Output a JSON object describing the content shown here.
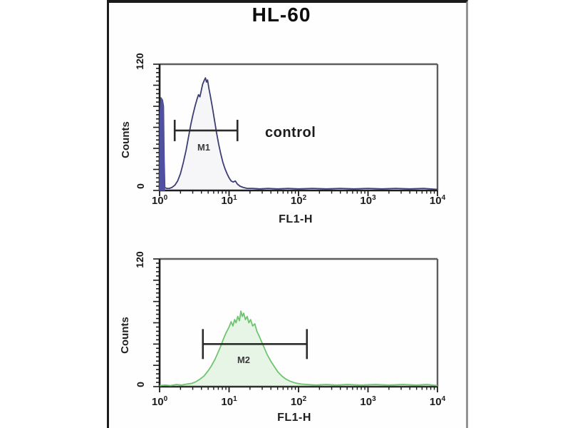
{
  "title": "HL-60",
  "colors": {
    "border_left": "#1c1c1c",
    "border_top": "#1a1a1a",
    "border_right": "#939393",
    "frame": "#5e5e5e",
    "axis": "#1b1b1b",
    "marker": "#2b2b2b",
    "text": "#111111"
  },
  "chart_data": [
    {
      "type": "area",
      "name": "control-histogram",
      "xlabel": "FL1-H",
      "ylabel": "Counts",
      "x_scale": "log",
      "xlim": [
        1,
        10000
      ],
      "ylim": [
        0,
        120
      ],
      "y_tick_labels": [
        "0",
        "120"
      ],
      "x_tick_exponents": [
        0,
        1,
        2,
        3,
        4
      ],
      "annotation": "control",
      "line_color": "#3d3d75",
      "fill_color": "rgba(90,90,160,0.05)",
      "edge_spike": {
        "color": "#4f51a0",
        "points_log10x_counts": [
          [
            0,
            0
          ],
          [
            0.005,
            72
          ],
          [
            0.02,
            88
          ],
          [
            0.04,
            86
          ],
          [
            0.055,
            80
          ],
          [
            0.065,
            30
          ],
          [
            0.075,
            3
          ]
        ]
      },
      "marker": {
        "label": "M1",
        "x_from": 1.65,
        "x_to": 13.2,
        "y_counts": 57
      },
      "points_log10x_counts": [
        [
          0.07,
          3
        ],
        [
          0.1,
          2
        ],
        [
          0.14,
          2
        ],
        [
          0.18,
          3
        ],
        [
          0.22,
          5
        ],
        [
          0.26,
          9
        ],
        [
          0.3,
          16
        ],
        [
          0.34,
          26
        ],
        [
          0.38,
          38
        ],
        [
          0.42,
          52
        ],
        [
          0.45,
          63
        ],
        [
          0.48,
          72
        ],
        [
          0.51,
          80
        ],
        [
          0.54,
          87
        ],
        [
          0.56,
          91
        ],
        [
          0.58,
          89
        ],
        [
          0.6,
          95
        ],
        [
          0.62,
          101
        ],
        [
          0.645,
          105
        ],
        [
          0.66,
          107
        ],
        [
          0.675,
          103
        ],
        [
          0.69,
          105
        ],
        [
          0.71,
          97
        ],
        [
          0.73,
          90
        ],
        [
          0.76,
          79
        ],
        [
          0.79,
          67
        ],
        [
          0.82,
          55
        ],
        [
          0.85,
          44
        ],
        [
          0.88,
          35
        ],
        [
          0.91,
          27
        ],
        [
          0.94,
          21
        ],
        [
          0.97,
          16
        ],
        [
          1.0,
          12
        ],
        [
          1.03,
          9
        ],
        [
          1.06,
          8
        ],
        [
          1.09,
          9
        ],
        [
          1.12,
          6
        ],
        [
          1.16,
          4
        ],
        [
          1.2,
          3
        ],
        [
          1.26,
          2
        ],
        [
          1.34,
          2
        ],
        [
          1.44,
          1.5
        ],
        [
          1.56,
          2
        ],
        [
          1.7,
          1.5
        ],
        [
          1.85,
          2
        ],
        [
          2.0,
          1.5
        ],
        [
          2.2,
          2
        ],
        [
          2.4,
          1.5
        ],
        [
          2.6,
          2
        ],
        [
          2.8,
          1.5
        ],
        [
          3.0,
          2
        ],
        [
          3.2,
          1.5
        ],
        [
          3.4,
          2
        ],
        [
          3.6,
          1.5
        ],
        [
          3.8,
          2
        ],
        [
          4.0,
          1
        ]
      ]
    },
    {
      "type": "area",
      "name": "stained-histogram",
      "xlabel": "FL1-H",
      "ylabel": "Counts",
      "x_scale": "log",
      "xlim": [
        1,
        10000
      ],
      "ylim": [
        0,
        120
      ],
      "y_tick_labels": [
        "0",
        "120"
      ],
      "x_tick_exponents": [
        0,
        1,
        2,
        3,
        4
      ],
      "annotation": "",
      "line_color": "#6fc46f",
      "fill_color": "rgba(150,215,150,0.22)",
      "edge_spike": null,
      "marker": {
        "label": "M2",
        "x_from": 4.2,
        "x_to": 132,
        "y_counts": 40
      },
      "points_log10x_counts": [
        [
          0.0,
          1
        ],
        [
          0.08,
          1.5
        ],
        [
          0.16,
          1
        ],
        [
          0.24,
          2
        ],
        [
          0.32,
          1.5
        ],
        [
          0.4,
          2.5
        ],
        [
          0.46,
          3
        ],
        [
          0.52,
          4.5
        ],
        [
          0.58,
          7
        ],
        [
          0.64,
          10
        ],
        [
          0.7,
          15
        ],
        [
          0.75,
          20
        ],
        [
          0.8,
          26
        ],
        [
          0.84,
          32
        ],
        [
          0.88,
          38
        ],
        [
          0.92,
          45
        ],
        [
          0.96,
          51
        ],
        [
          1.0,
          56
        ],
        [
          1.03,
          61
        ],
        [
          1.055,
          57
        ],
        [
          1.08,
          63
        ],
        [
          1.1,
          60
        ],
        [
          1.125,
          66
        ],
        [
          1.15,
          62
        ],
        [
          1.17,
          71
        ],
        [
          1.19,
          66
        ],
        [
          1.21,
          69
        ],
        [
          1.235,
          63
        ],
        [
          1.26,
          66
        ],
        [
          1.285,
          60
        ],
        [
          1.31,
          63
        ],
        [
          1.34,
          57
        ],
        [
          1.37,
          59
        ],
        [
          1.4,
          52
        ],
        [
          1.43,
          48
        ],
        [
          1.47,
          42
        ],
        [
          1.51,
          36
        ],
        [
          1.55,
          30
        ],
        [
          1.6,
          24
        ],
        [
          1.65,
          19
        ],
        [
          1.7,
          14
        ],
        [
          1.76,
          10
        ],
        [
          1.82,
          7
        ],
        [
          1.88,
          5
        ],
        [
          1.95,
          3.5
        ],
        [
          2.03,
          2.5
        ],
        [
          2.12,
          2
        ],
        [
          2.25,
          1.5
        ],
        [
          2.4,
          2
        ],
        [
          2.55,
          1.5
        ],
        [
          2.7,
          2
        ],
        [
          2.9,
          1.5
        ],
        [
          3.1,
          2
        ],
        [
          3.3,
          1.5
        ],
        [
          3.5,
          2
        ],
        [
          3.7,
          1.5
        ],
        [
          3.85,
          2
        ],
        [
          4.0,
          1
        ]
      ]
    }
  ]
}
